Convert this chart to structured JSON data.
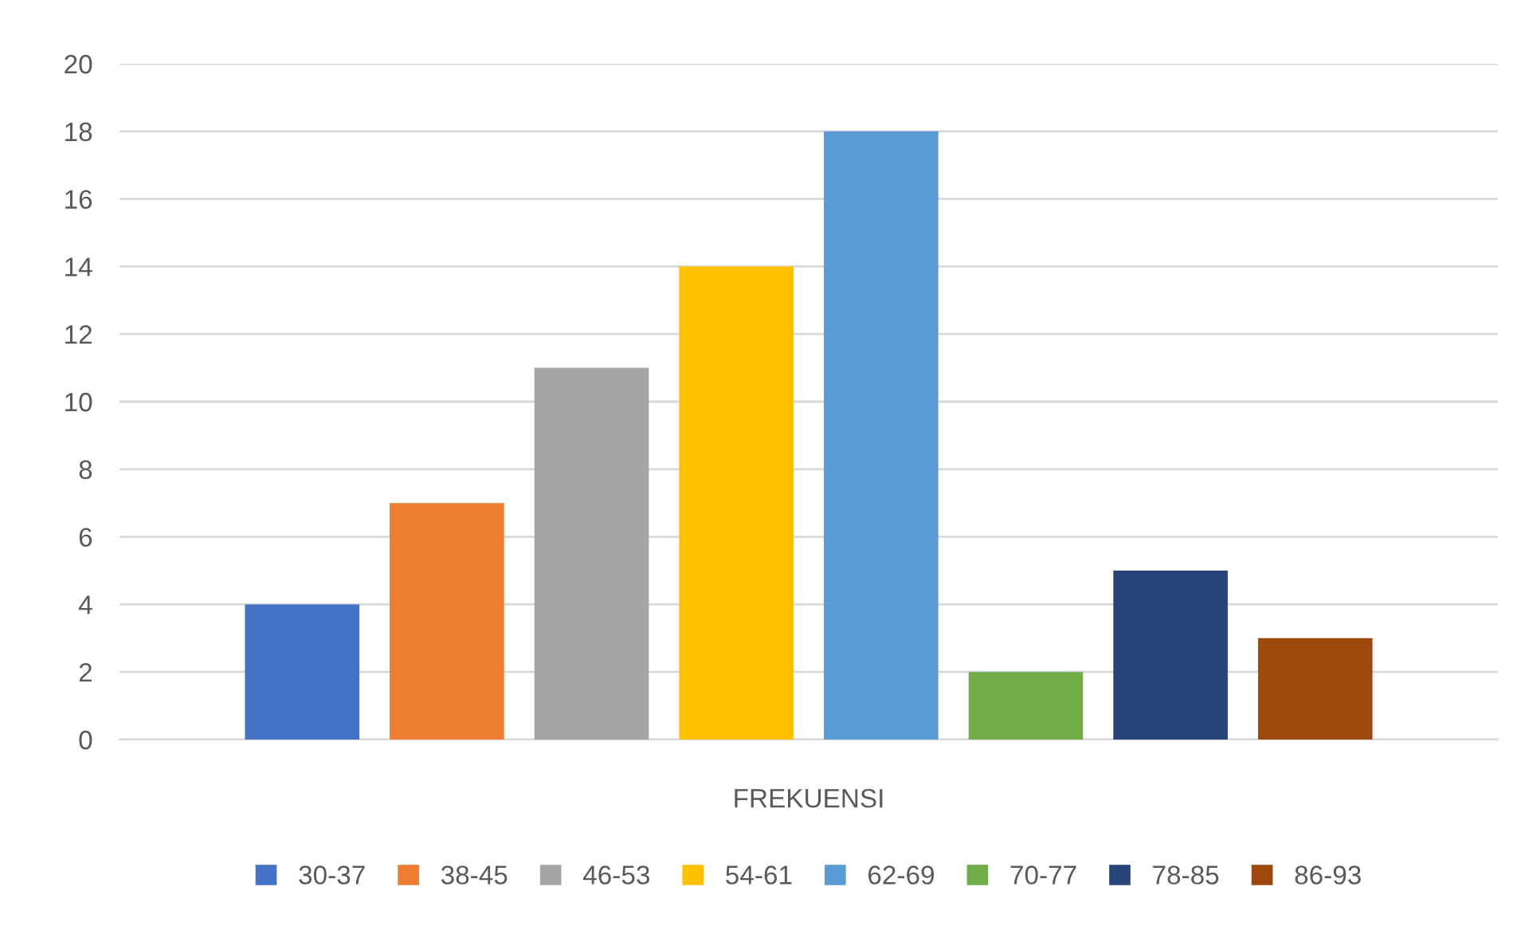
{
  "chart_data": {
    "type": "bar",
    "categories": [
      "FREKUENSI"
    ],
    "series": [
      {
        "name": "30-37",
        "color": "#4472c4",
        "values": [
          4
        ]
      },
      {
        "name": "38-45",
        "color": "#ed7d31",
        "values": [
          7
        ]
      },
      {
        "name": "46-53",
        "color": "#a5a5a5",
        "values": [
          11
        ]
      },
      {
        "name": "54-61",
        "color": "#ffc000",
        "values": [
          14
        ]
      },
      {
        "name": "62-69",
        "color": "#5b9bd5",
        "values": [
          18
        ]
      },
      {
        "name": "70-77",
        "color": "#70ad47",
        "values": [
          2
        ]
      },
      {
        "name": "78-85",
        "color": "#264478",
        "values": [
          5
        ]
      },
      {
        "name": "86-93",
        "color": "#9e480e",
        "values": [
          3
        ]
      }
    ],
    "ylim": [
      0,
      20
    ],
    "yticks": [
      0,
      2,
      4,
      6,
      8,
      10,
      12,
      14,
      16,
      18,
      20
    ],
    "grid": "y",
    "legend": "bottom"
  }
}
